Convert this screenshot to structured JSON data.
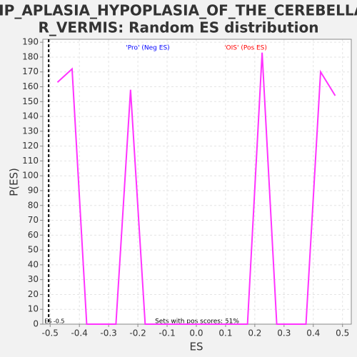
{
  "chart_data": {
    "type": "line",
    "title": [
      "HP_APLASIA_HYPOPLASIA_OF_THE_CEREBELLA",
      "R_VERMIS: Random ES distribution"
    ],
    "xlabel": "ES",
    "ylabel": "P(ES)",
    "x": [
      -0.475,
      -0.425,
      -0.375,
      -0.325,
      -0.275,
      -0.225,
      -0.175,
      -0.125,
      -0.075,
      -0.025,
      0.025,
      0.075,
      0.125,
      0.175,
      0.225,
      0.275,
      0.325,
      0.375,
      0.425,
      0.475
    ],
    "series": [
      {
        "name": "P(ES)",
        "color": "#ff33ff",
        "values": [
          163,
          172,
          0,
          0,
          0,
          158,
          0,
          0,
          0,
          0,
          0,
          0,
          0,
          0,
          183,
          0,
          0,
          0,
          170,
          154
        ]
      }
    ],
    "xlim": [
      -0.525,
      0.53
    ],
    "ylim": [
      0,
      192
    ],
    "xticks": [
      -0.5,
      -0.4,
      -0.3,
      -0.2,
      -0.1,
      {
        "value": 0,
        "label": "0.0"
      },
      0.1,
      0.2,
      0.3,
      0.4,
      0.5
    ],
    "yticks": [
      0,
      10,
      20,
      30,
      40,
      50,
      60,
      70,
      80,
      90,
      100,
      110,
      120,
      130,
      140,
      150,
      160,
      170,
      180,
      190
    ],
    "grid": true,
    "vline": {
      "value": -0.505,
      "label": "ES -0.5"
    },
    "neg_label": "'Pro' (Neg ES)",
    "pos_label": "'OIS' (Pos ES)",
    "footer": "Sets with pos scores: 51%"
  }
}
